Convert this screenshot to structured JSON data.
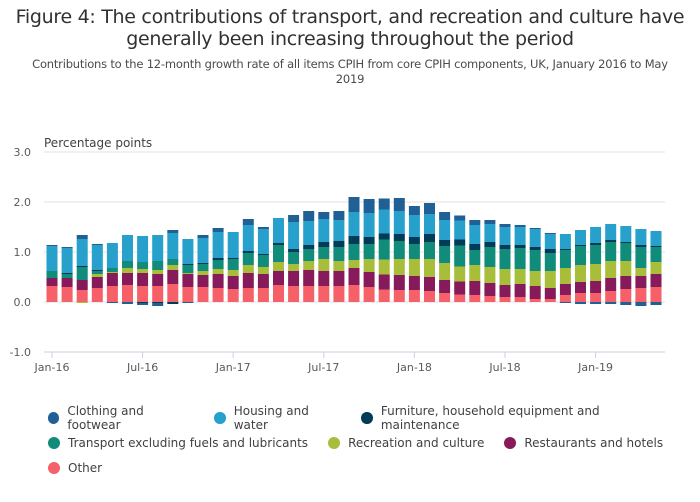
{
  "chart_data": {
    "type": "bar",
    "stacked": true,
    "title": "Figure 4: The contributions of transport, and recreation and culture have generally been increasing throughout the period",
    "subtitle": "Contributions to the 12-month growth rate of all items CPIH from core CPIH components, UK, January 2016 to May 2019",
    "ylabel": "Percentage points",
    "xlabel": "",
    "ylim": [
      -1.0,
      3.0
    ],
    "yticks": [
      "3.0",
      "2.0",
      "1.0",
      "0.0",
      "-1.0"
    ],
    "ytick_values": [
      3.0,
      2.0,
      1.0,
      0.0,
      -1.0
    ],
    "xtick_labels": [
      "Jan-16",
      "Jul-16",
      "Jan-17",
      "Jul-17",
      "Jan-18",
      "Jul-18",
      "Jan-19"
    ],
    "xtick_indices": [
      0,
      6,
      12,
      18,
      24,
      30,
      36
    ],
    "grid": true,
    "legend_position": "bottom",
    "categories": [
      "Jan-16",
      "Feb-16",
      "Mar-16",
      "Apr-16",
      "May-16",
      "Jun-16",
      "Jul-16",
      "Aug-16",
      "Sep-16",
      "Oct-16",
      "Nov-16",
      "Dec-16",
      "Jan-17",
      "Feb-17",
      "Mar-17",
      "Apr-17",
      "May-17",
      "Jun-17",
      "Jul-17",
      "Aug-17",
      "Sep-17",
      "Oct-17",
      "Nov-17",
      "Dec-17",
      "Jan-18",
      "Feb-18",
      "Mar-18",
      "Apr-18",
      "May-18",
      "Jun-18",
      "Jul-18",
      "Aug-18",
      "Sep-18",
      "Oct-18",
      "Nov-18",
      "Dec-18",
      "Jan-19",
      "Feb-19",
      "Mar-19",
      "Apr-19",
      "May-19"
    ],
    "series": [
      {
        "name": "Other",
        "color": "#f66068",
        "values": [
          0.32,
          0.3,
          0.24,
          0.28,
          0.32,
          0.34,
          0.32,
          0.32,
          0.36,
          0.3,
          0.3,
          0.28,
          0.26,
          0.28,
          0.28,
          0.34,
          0.32,
          0.32,
          0.32,
          0.32,
          0.34,
          0.3,
          0.25,
          0.24,
          0.24,
          0.22,
          0.18,
          0.15,
          0.14,
          0.12,
          0.1,
          0.1,
          0.06,
          0.06,
          0.14,
          0.18,
          0.18,
          0.22,
          0.26,
          0.28,
          0.3
        ]
      },
      {
        "name": "Restaurants and hotels",
        "color": "#871a5b",
        "values": [
          0.16,
          0.18,
          0.2,
          0.22,
          0.26,
          0.24,
          0.26,
          0.24,
          0.28,
          0.26,
          0.24,
          0.28,
          0.26,
          0.3,
          0.28,
          0.28,
          0.3,
          0.32,
          0.3,
          0.3,
          0.34,
          0.3,
          0.3,
          0.3,
          0.28,
          0.28,
          0.26,
          0.26,
          0.28,
          0.26,
          0.24,
          0.26,
          0.26,
          0.22,
          0.22,
          0.22,
          0.24,
          0.26,
          0.26,
          0.24,
          0.26
        ]
      },
      {
        "name": "Recreation and culture",
        "color": "#a8bd3a",
        "values": [
          0.0,
          0.0,
          -0.02,
          0.06,
          0.02,
          0.1,
          0.08,
          0.08,
          0.1,
          0.02,
          0.08,
          0.1,
          0.12,
          0.16,
          0.14,
          0.18,
          0.14,
          0.18,
          0.24,
          0.2,
          0.16,
          0.26,
          0.3,
          0.32,
          0.34,
          0.36,
          0.34,
          0.3,
          0.32,
          0.32,
          0.32,
          0.3,
          0.3,
          0.34,
          0.32,
          0.34,
          0.34,
          0.34,
          0.3,
          0.16,
          0.24
        ]
      },
      {
        "name": "Transport excluding fuels and lubricants",
        "color": "#118c7b",
        "values": [
          0.14,
          0.08,
          0.26,
          0.06,
          0.08,
          0.14,
          0.14,
          0.18,
          0.12,
          0.16,
          0.14,
          0.18,
          0.22,
          0.24,
          0.24,
          0.34,
          0.24,
          0.24,
          0.24,
          0.28,
          0.32,
          0.3,
          0.4,
          0.36,
          0.3,
          0.34,
          0.34,
          0.42,
          0.3,
          0.4,
          0.4,
          0.42,
          0.42,
          0.36,
          0.36,
          0.38,
          0.38,
          0.38,
          0.36,
          0.42,
          0.3
        ]
      },
      {
        "name": "Furniture, household equipment and maintenance",
        "color": "#003c57",
        "values": [
          0.0,
          0.02,
          0.02,
          0.02,
          0.0,
          0.0,
          -0.02,
          -0.02,
          -0.04,
          0.02,
          0.02,
          0.04,
          0.02,
          0.04,
          0.02,
          0.04,
          0.06,
          0.08,
          0.1,
          0.12,
          0.16,
          0.14,
          0.12,
          0.14,
          0.14,
          0.16,
          0.12,
          0.12,
          0.12,
          0.1,
          0.08,
          0.06,
          0.06,
          0.08,
          0.02,
          0.02,
          0.04,
          0.04,
          0.02,
          0.04,
          0.02
        ]
      },
      {
        "name": "Housing and water",
        "color": "#27a0cc",
        "values": [
          0.5,
          0.5,
          0.54,
          0.5,
          0.5,
          0.52,
          0.52,
          0.52,
          0.52,
          0.5,
          0.5,
          0.52,
          0.52,
          0.52,
          0.5,
          0.5,
          0.54,
          0.48,
          0.46,
          0.42,
          0.48,
          0.48,
          0.48,
          0.46,
          0.44,
          0.4,
          0.4,
          0.38,
          0.38,
          0.36,
          0.36,
          0.36,
          0.36,
          0.3,
          0.3,
          0.3,
          0.32,
          0.32,
          0.32,
          0.32,
          0.3
        ]
      },
      {
        "name": "Clothing and footwear",
        "color": "#206095",
        "values": [
          0.02,
          0.02,
          0.08,
          0.02,
          -0.02,
          -0.04,
          -0.04,
          -0.06,
          0.06,
          -0.02,
          0.06,
          0.08,
          0.0,
          0.12,
          0.04,
          0.0,
          0.14,
          0.2,
          0.14,
          0.18,
          0.3,
          0.28,
          0.22,
          0.26,
          0.18,
          0.22,
          0.16,
          0.1,
          0.1,
          0.08,
          0.06,
          0.04,
          0.02,
          0.02,
          -0.02,
          -0.04,
          -0.04,
          -0.04,
          -0.06,
          -0.08,
          -0.06
        ]
      }
    ]
  },
  "legend": {
    "items": [
      {
        "label": "Clothing and footwear",
        "color": "#206095"
      },
      {
        "label": "Housing and water",
        "color": "#27a0cc"
      },
      {
        "label": "Furniture, household equipment and maintenance",
        "color": "#003c57"
      },
      {
        "label": "Transport excluding fuels and lubricants",
        "color": "#118c7b"
      },
      {
        "label": "Recreation and culture",
        "color": "#a8bd3a"
      },
      {
        "label": "Restaurants and hotels",
        "color": "#871a5b"
      },
      {
        "label": "Other",
        "color": "#f66068"
      }
    ]
  }
}
